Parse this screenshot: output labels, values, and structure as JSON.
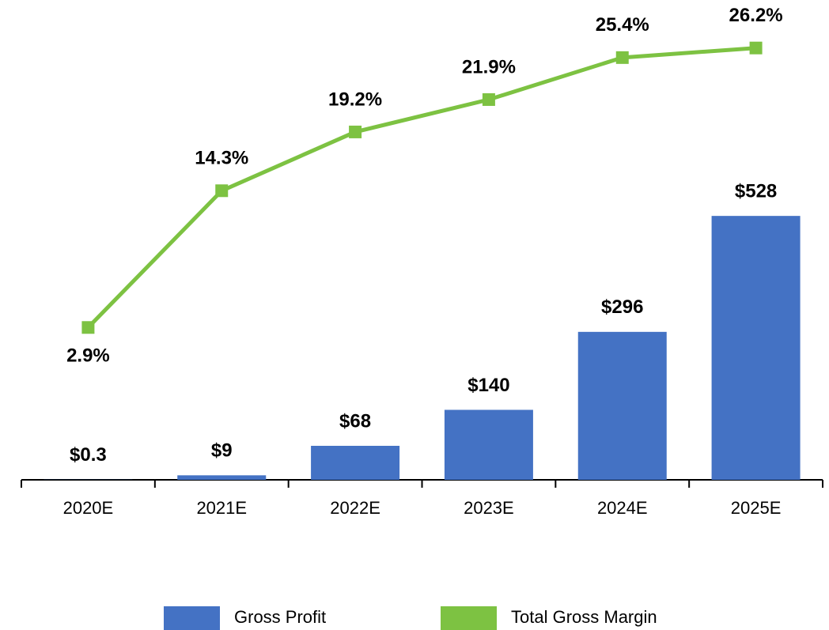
{
  "chart_data": {
    "type": "bar-line",
    "categories": [
      "2020E",
      "2021E",
      "2022E",
      "2023E",
      "2024E",
      "2025E"
    ],
    "series": [
      {
        "name": "Gross Profit",
        "type": "bar",
        "color": "#4472c4",
        "values": [
          0.3,
          9,
          68,
          140,
          296,
          528
        ],
        "value_labels": [
          "$0.3",
          "$9",
          "$68",
          "$140",
          "$296",
          "$528"
        ]
      },
      {
        "name": "Total Gross Margin",
        "type": "line",
        "axis": "y2",
        "color": "#7dc242",
        "values": [
          2.9,
          14.3,
          19.2,
          21.9,
          25.4,
          26.2
        ],
        "value_labels": [
          "2.9%",
          "14.3%",
          "19.2%",
          "21.9%",
          "25.4%",
          "26.2%"
        ]
      }
    ],
    "ylim": [
      0,
      960
    ],
    "y2lim": [
      -9.8,
      30.2
    ],
    "legend": "bottom"
  }
}
